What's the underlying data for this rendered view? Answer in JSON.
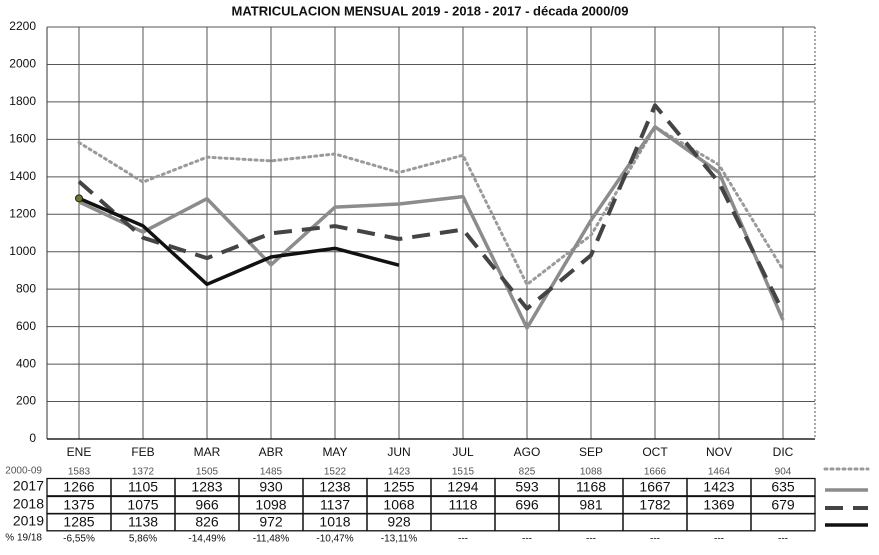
{
  "chart_data": {
    "type": "line",
    "title": "MATRICULACION MENSUAL  2019 - 2018 - 2017 - década 2000/09",
    "categories": [
      "ENE",
      "FEB",
      "MAR",
      "ABR",
      "MAY",
      "JUN",
      "JUL",
      "AGO",
      "SEP",
      "OCT",
      "NOV",
      "DIC"
    ],
    "ylim": [
      0,
      2200
    ],
    "yticks": [
      0,
      200,
      400,
      600,
      800,
      1000,
      1200,
      1400,
      1600,
      1800,
      2000,
      2200
    ],
    "grid": true,
    "series": [
      {
        "name": "2000-09",
        "color": "#9a9a9a",
        "values": [
          1583,
          1372,
          1505,
          1485,
          1522,
          1423,
          1515,
          825,
          1088,
          1666,
          1464,
          904
        ]
      },
      {
        "name": "2017",
        "color": "#8c8c8c",
        "values": [
          1266,
          1105,
          1283,
          930,
          1238,
          1255,
          1294,
          593,
          1168,
          1667,
          1423,
          635
        ]
      },
      {
        "name": "2018",
        "color": "#444444",
        "values": [
          1375,
          1075,
          966,
          1098,
          1137,
          1068,
          1118,
          696,
          981,
          1782,
          1369,
          679
        ]
      },
      {
        "name": "2019",
        "color": "#111111",
        "values": [
          1285,
          1138,
          826,
          972,
          1018,
          928,
          null,
          null,
          null,
          null,
          null,
          null
        ]
      }
    ],
    "pct_change": {
      "name": "% 19/18",
      "values": [
        -6.55,
        5.86,
        -14.49,
        -11.48,
        -10.47,
        -13.11,
        null,
        null,
        null,
        null,
        null,
        null
      ],
      "value_labels": [
        "-6,55%",
        "5,86%",
        "-14,49%",
        "-11,48%",
        "-10,47%",
        "-13,11%",
        "---",
        "---",
        "---",
        "---",
        "---",
        "---"
      ]
    }
  }
}
